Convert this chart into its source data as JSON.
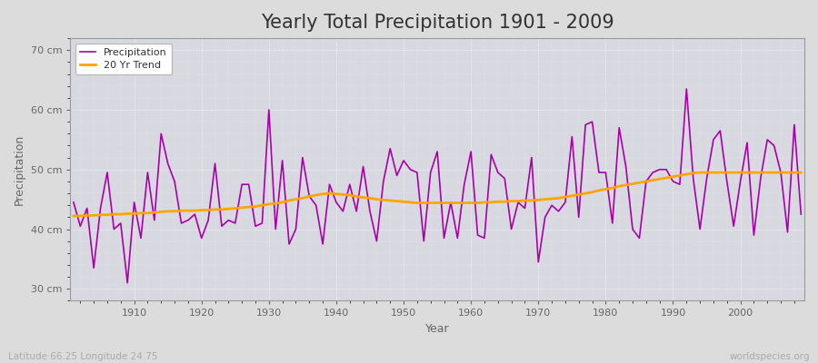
{
  "title": "Yearly Total Precipitation 1901 - 2009",
  "xlabel": "Year",
  "ylabel": "Precipitation",
  "subtitle": "Latitude 66.25 Longitude 24.75",
  "watermark": "worldspecies.org",
  "years": [
    1901,
    1902,
    1903,
    1904,
    1905,
    1906,
    1907,
    1908,
    1909,
    1910,
    1911,
    1912,
    1913,
    1914,
    1915,
    1916,
    1917,
    1918,
    1919,
    1920,
    1921,
    1922,
    1923,
    1924,
    1925,
    1926,
    1927,
    1928,
    1929,
    1930,
    1931,
    1932,
    1933,
    1934,
    1935,
    1936,
    1937,
    1938,
    1939,
    1940,
    1941,
    1942,
    1943,
    1944,
    1945,
    1946,
    1947,
    1948,
    1949,
    1950,
    1951,
    1952,
    1953,
    1954,
    1955,
    1956,
    1957,
    1958,
    1959,
    1960,
    1961,
    1962,
    1963,
    1964,
    1965,
    1966,
    1967,
    1968,
    1969,
    1970,
    1971,
    1972,
    1973,
    1974,
    1975,
    1976,
    1977,
    1978,
    1979,
    1980,
    1981,
    1982,
    1983,
    1984,
    1985,
    1986,
    1987,
    1988,
    1989,
    1990,
    1991,
    1992,
    1993,
    1994,
    1995,
    1996,
    1997,
    1998,
    1999,
    2000,
    2001,
    2002,
    2003,
    2004,
    2005,
    2006,
    2007,
    2008,
    2009
  ],
  "precipitation": [
    44.5,
    40.5,
    43.5,
    33.5,
    43.5,
    49.5,
    40.0,
    41.0,
    31.0,
    44.5,
    38.5,
    49.5,
    41.5,
    56.0,
    51.0,
    48.0,
    41.0,
    41.5,
    42.5,
    38.5,
    41.5,
    51.0,
    40.5,
    41.5,
    41.0,
    47.5,
    47.5,
    40.5,
    41.0,
    60.0,
    40.0,
    51.5,
    37.5,
    40.0,
    52.0,
    45.5,
    44.0,
    37.5,
    47.5,
    44.5,
    43.0,
    47.5,
    43.0,
    50.5,
    43.0,
    38.0,
    48.0,
    53.5,
    49.0,
    51.5,
    50.0,
    49.5,
    38.0,
    49.5,
    53.0,
    38.5,
    44.5,
    38.5,
    47.5,
    53.0,
    39.0,
    38.5,
    52.5,
    49.5,
    48.5,
    40.0,
    44.5,
    43.5,
    52.0,
    34.5,
    42.0,
    44.0,
    43.0,
    44.5,
    55.5,
    42.0,
    57.5,
    58.0,
    49.5,
    49.5,
    41.0,
    57.0,
    50.5,
    40.0,
    38.5,
    48.0,
    49.5,
    50.0,
    50.0,
    48.0,
    47.5,
    63.5,
    48.5,
    40.0,
    48.5,
    55.0,
    56.5,
    48.0,
    40.5,
    48.0,
    54.5,
    39.0,
    48.5,
    55.0,
    54.0,
    49.5,
    39.5,
    57.5,
    42.5
  ],
  "trend": [
    42.2,
    42.2,
    42.3,
    42.3,
    42.4,
    42.4,
    42.5,
    42.5,
    42.6,
    42.6,
    42.7,
    42.7,
    42.8,
    42.9,
    43.0,
    43.0,
    43.1,
    43.1,
    43.1,
    43.2,
    43.2,
    43.3,
    43.3,
    43.4,
    43.5,
    43.6,
    43.7,
    43.8,
    44.0,
    44.2,
    44.3,
    44.5,
    44.8,
    45.0,
    45.2,
    45.5,
    45.7,
    45.9,
    46.0,
    45.9,
    45.8,
    45.7,
    45.5,
    45.3,
    45.2,
    45.0,
    44.9,
    44.8,
    44.7,
    44.6,
    44.5,
    44.4,
    44.4,
    44.4,
    44.4,
    44.4,
    44.4,
    44.4,
    44.4,
    44.4,
    44.4,
    44.5,
    44.5,
    44.6,
    44.6,
    44.7,
    44.7,
    44.8,
    44.8,
    44.9,
    45.0,
    45.1,
    45.2,
    45.4,
    45.6,
    45.8,
    46.0,
    46.2,
    46.5,
    46.7,
    46.9,
    47.2,
    47.4,
    47.6,
    47.8,
    48.0,
    48.2,
    48.4,
    48.6,
    48.8,
    49.0,
    49.2,
    49.4,
    49.5,
    49.5,
    49.5,
    49.5,
    49.5,
    49.5,
    49.5,
    49.5,
    49.5,
    49.5,
    49.5,
    49.5,
    49.5,
    49.5,
    49.5,
    49.5
  ],
  "precip_color": "#AA00AA",
  "trend_color": "#FFA500",
  "bg_color": "#DCDCDC",
  "plot_bg_color": "#D8D8E0",
  "grid_color": "#FFFFFF",
  "ylim": [
    28,
    72
  ],
  "yticks": [
    30,
    40,
    50,
    60,
    70
  ],
  "ytick_labels": [
    "30 cm",
    "40 cm",
    "50 cm",
    "60 cm",
    "70 cm"
  ],
  "xticks": [
    1910,
    1920,
    1930,
    1940,
    1950,
    1960,
    1970,
    1980,
    1990,
    2000
  ],
  "title_fontsize": 15,
  "axis_label_fontsize": 9,
  "tick_fontsize": 8,
  "legend_fontsize": 8
}
